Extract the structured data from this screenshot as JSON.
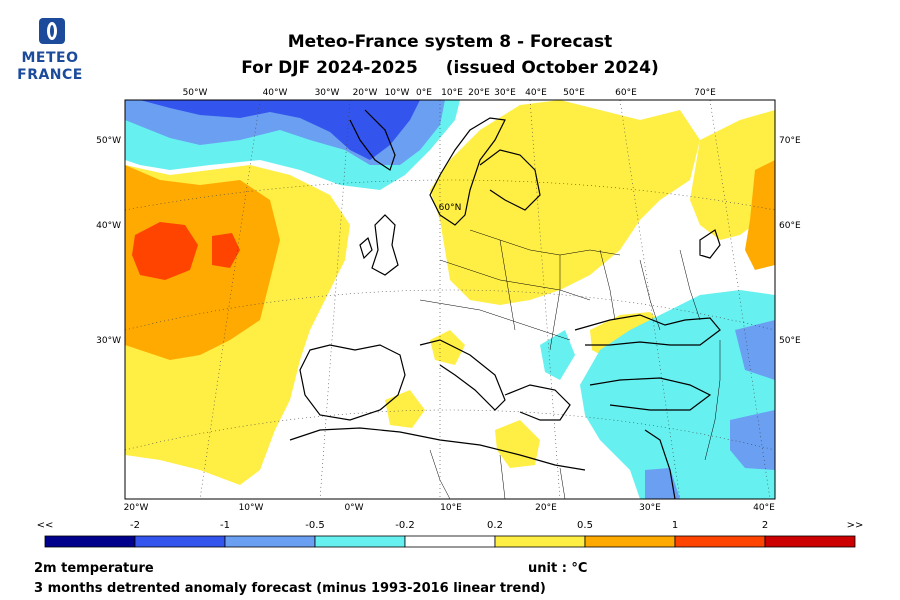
{
  "header": {
    "logo_line1": "METEO",
    "logo_line2": "FRANCE",
    "title_line1": "Meteo-France system 8  -  Forecast",
    "title_line2a": "For DJF 2024-2025",
    "title_line2b": "(issued October 2024)"
  },
  "map": {
    "top_lon_labels": [
      "50°W",
      "40°W",
      "30°W",
      "20°W",
      "10°W",
      "0°E",
      "10°E",
      "20°E",
      "30°E",
      "40°E",
      "50°E",
      "60°E",
      "70°E"
    ],
    "bottom_lon_labels": [
      "20°W",
      "10°W",
      "0°W",
      "10°E",
      "20°E",
      "30°E",
      "40°E"
    ],
    "left_lat_labels": [
      "50°W",
      "40°W",
      "30°W"
    ],
    "right_lat_labels": [
      "70°E",
      "60°E",
      "50°E"
    ],
    "inner_label": "60°N"
  },
  "colorbar": {
    "edge_left": "<<",
    "edge_right": ">>",
    "thresholds": [
      "-2",
      "-1",
      "-0.5",
      "-0.2",
      "0.2",
      "0.5",
      "1",
      "2"
    ],
    "colors": [
      "#00008c",
      "#3355ee",
      "#6b9ff2",
      "#66f0f0",
      "#ffffff",
      "#ffee44",
      "#ffaa00",
      "#ff4400",
      "#cc0000"
    ]
  },
  "footer": {
    "variable": "2m temperature",
    "description": "3 months detrented anomaly forecast (minus 1993-2016 linear trend)",
    "unit": "unit : °C"
  }
}
